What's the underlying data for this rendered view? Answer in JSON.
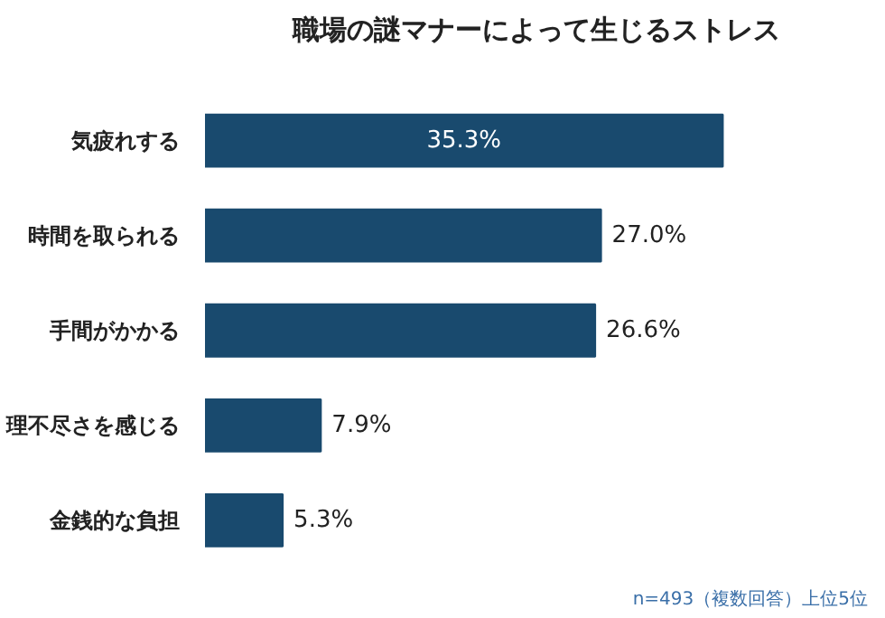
{
  "chart_data": {
    "type": "bar",
    "orientation": "horizontal",
    "title": "職場の謎マナーによって生じるストレス",
    "categories": [
      "気疲れする",
      "時間を取られる",
      "手間がかかる",
      "理不尽さを感じる",
      "金銭的な負担"
    ],
    "values": [
      35.3,
      27.0,
      26.6,
      7.9,
      5.3
    ],
    "value_labels": [
      "35.3%",
      "27.0%",
      "26.6%",
      "7.9%",
      "5.3%"
    ],
    "color": "#194a6e",
    "annotations": [
      "n=493（複数回答）上位5位"
    ]
  }
}
